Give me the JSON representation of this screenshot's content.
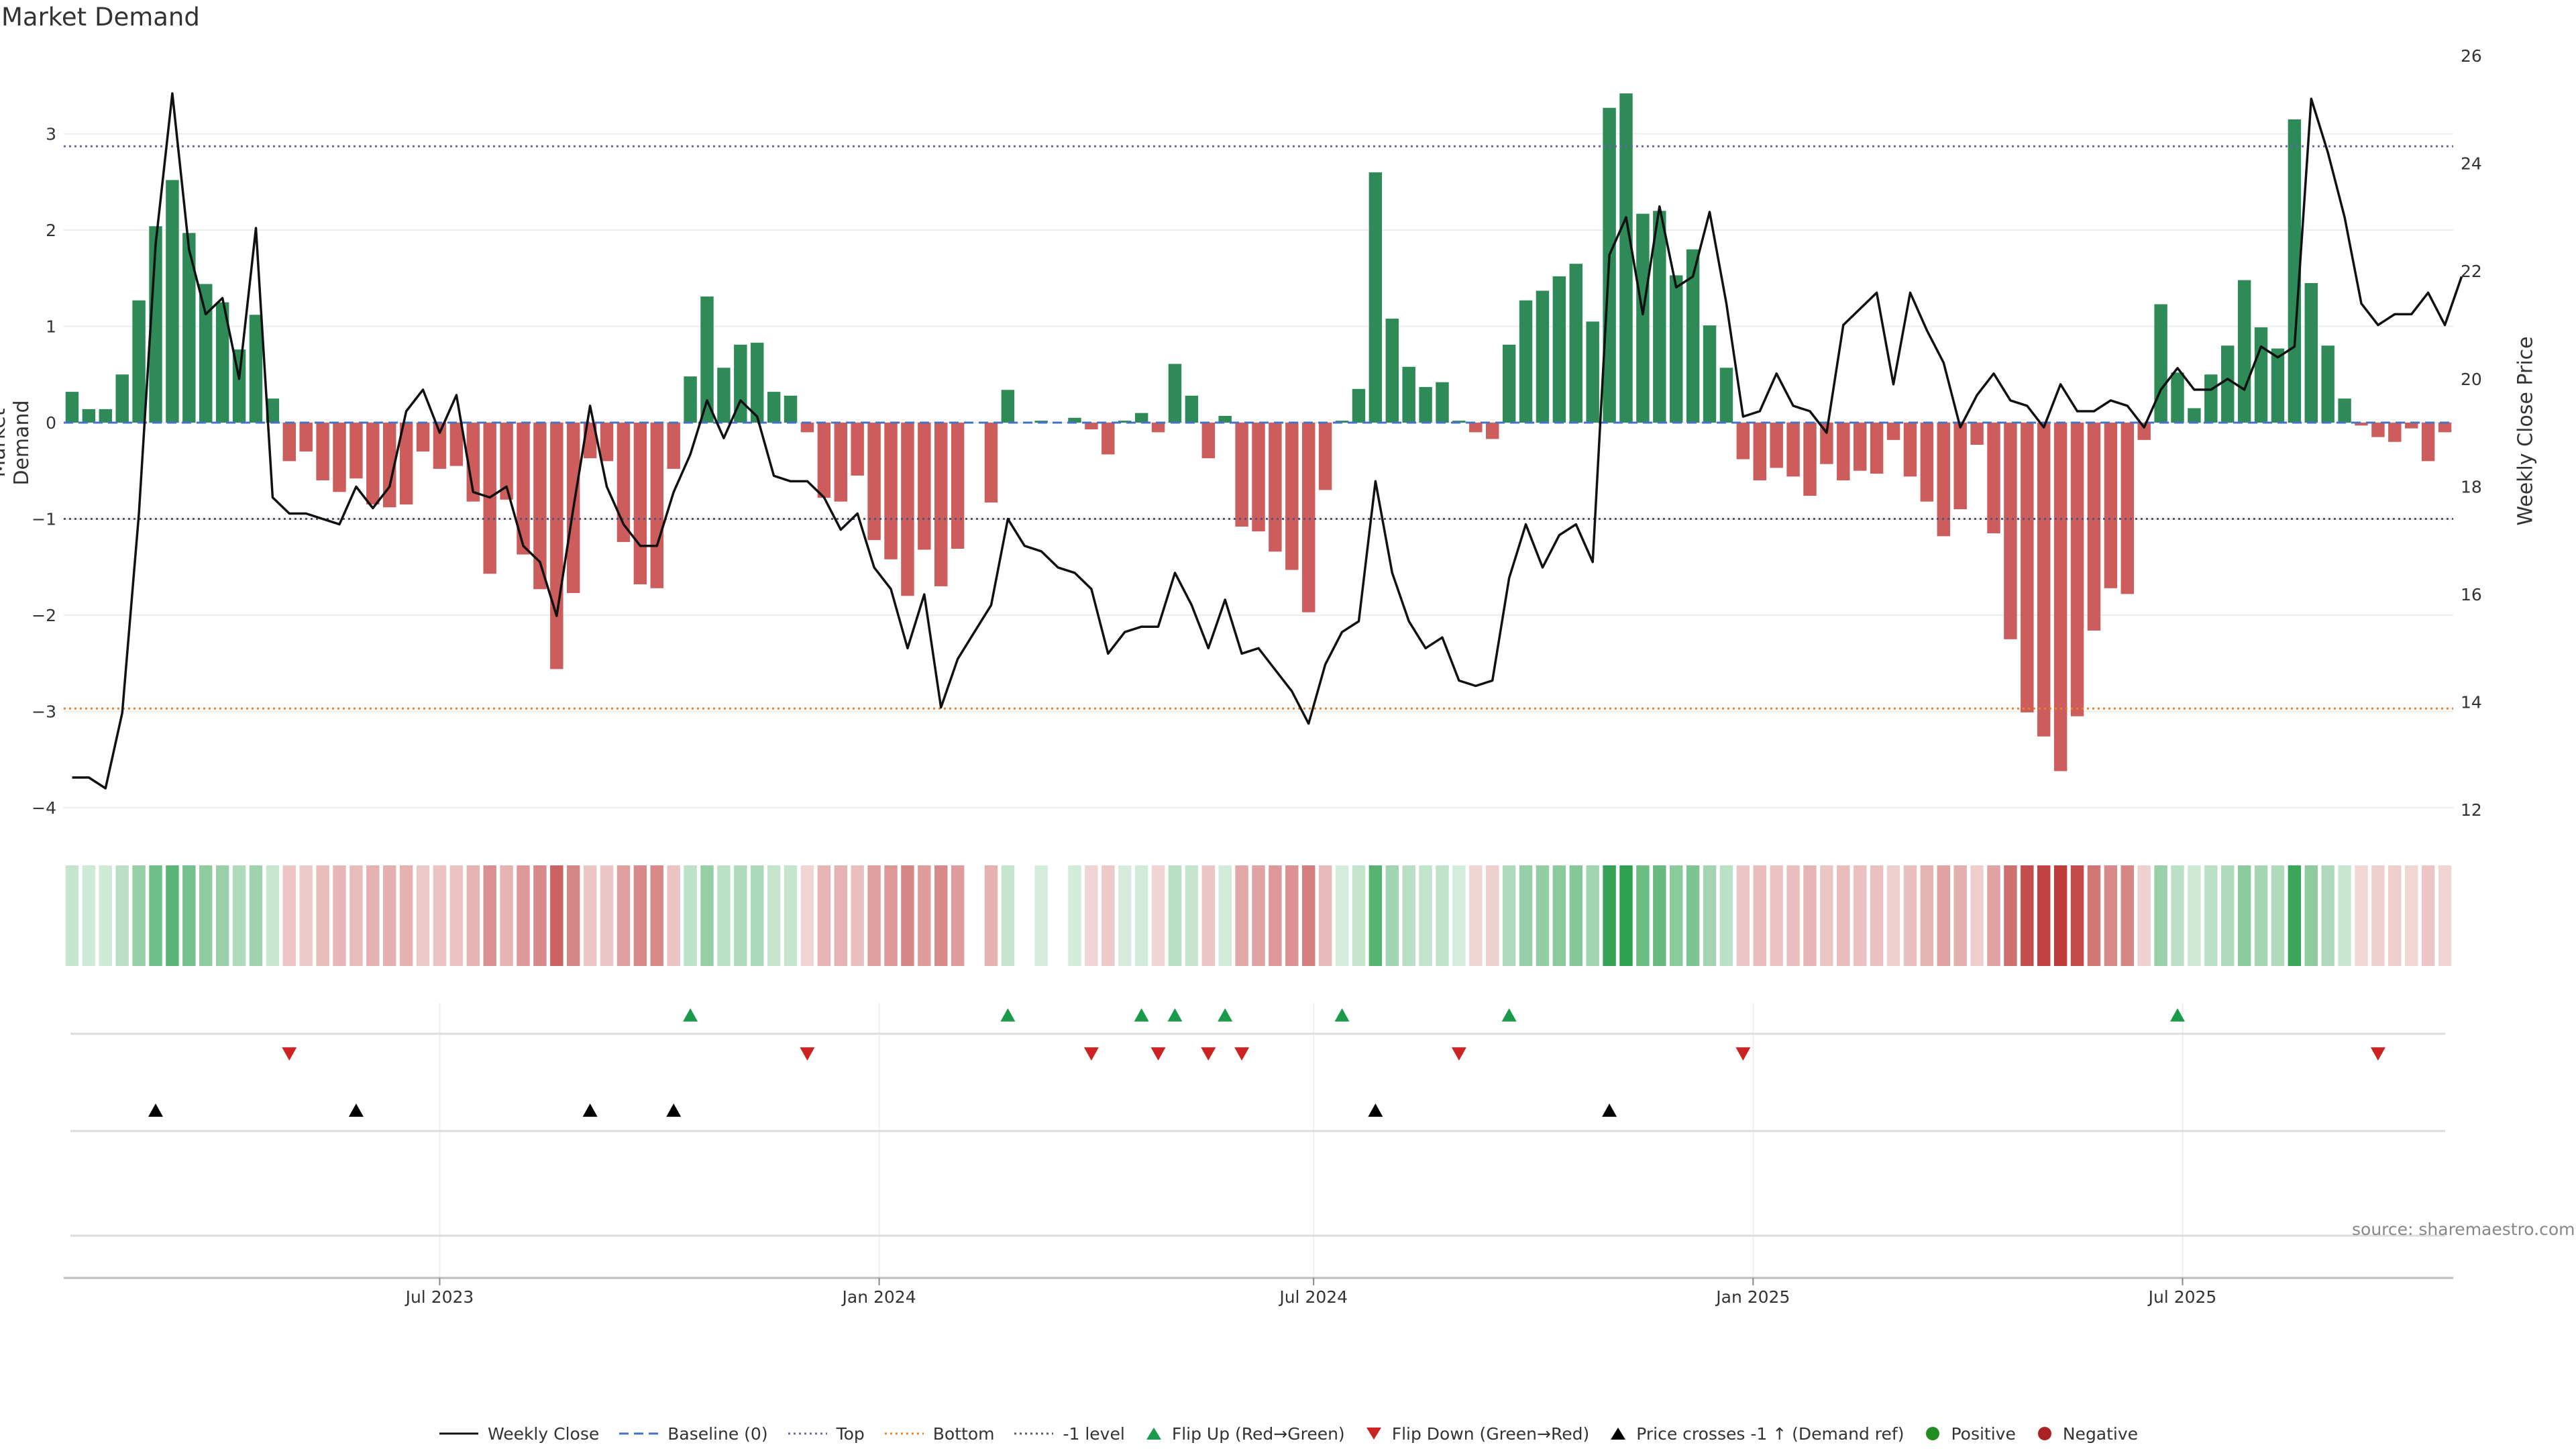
{
  "title": "Market Demand",
  "source": "source: sharemaestro.com",
  "colors": {
    "positive": "#2e8a57",
    "negative": "#cd5c5c",
    "line": "#111111",
    "baseline": "#4472c4",
    "top": "#6666aa",
    "bottom": "#e8852a",
    "minus_one": "#555577",
    "flip_up": "#1a9a4a",
    "flip_down": "#cc2222",
    "cross": "#000000",
    "pos_dot": "#228b22",
    "neg_dot": "#aa2222"
  },
  "legend": [
    {
      "key": "line",
      "label": "Weekly Close",
      "style": "solid",
      "color": "#111111"
    },
    {
      "key": "baseline",
      "label": "Baseline (0)",
      "style": "dashed",
      "color": "#4472c4"
    },
    {
      "key": "top",
      "label": "Top",
      "style": "dotted",
      "color": "#6666aa"
    },
    {
      "key": "bottom",
      "label": "Bottom",
      "style": "dotted",
      "color": "#e8852a"
    },
    {
      "key": "minus_one",
      "label": "-1 level",
      "style": "dotted",
      "color": "#555577"
    },
    {
      "key": "flip_up",
      "label": "Flip Up (Red→Green)",
      "style": "tri-up",
      "color": "#1a9a4a"
    },
    {
      "key": "flip_down",
      "label": "Flip Down (Green→Red)",
      "style": "tri-down",
      "color": "#cc2222"
    },
    {
      "key": "cross",
      "label": "Price crosses -1 ↑ (Demand ref)",
      "style": "tri-up",
      "color": "#000000"
    },
    {
      "key": "pos",
      "label": "Positive",
      "style": "dot",
      "color": "#228b22"
    },
    {
      "key": "neg",
      "label": "Negative",
      "style": "dot",
      "color": "#aa2222"
    }
  ],
  "chart_data": {
    "type": "bar",
    "title": "Market Demand",
    "ylabel": "Market Demand",
    "ylabel_right": "Weekly Close Price",
    "ylim": [
      -4.2,
      3.8
    ],
    "ylim_right": [
      11.7,
      26
    ],
    "yticks": [
      3,
      2,
      1,
      0,
      -1,
      -2,
      -3,
      -4
    ],
    "yticks_right": [
      26,
      24,
      22,
      20,
      18,
      16,
      14,
      12
    ],
    "xticks": [
      {
        "label": "Jul 2023",
        "week": 22
      },
      {
        "label": "Jan 2024",
        "week": 48.3
      },
      {
        "label": "Jul 2024",
        "week": 74.3
      },
      {
        "label": "Jan 2025",
        "week": 100.6
      },
      {
        "label": "Jul 2025",
        "week": 126.3
      }
    ],
    "reference_lines": {
      "top": 2.87,
      "bottom": -2.97,
      "minus_one": -1.0,
      "baseline": 0
    },
    "demand": [
      0.32,
      0.14,
      0.14,
      0.5,
      1.27,
      2.04,
      2.52,
      1.97,
      1.44,
      1.25,
      0.76,
      1.12,
      0.25,
      -0.4,
      -0.3,
      -0.6,
      -0.72,
      -0.58,
      -0.85,
      -0.88,
      -0.85,
      -0.3,
      -0.48,
      -0.45,
      -0.82,
      -1.57,
      -0.8,
      -1.37,
      -1.73,
      -2.56,
      -1.77,
      -0.37,
      -0.4,
      -1.24,
      -1.68,
      -1.72,
      -0.48,
      0.48,
      1.31,
      0.57,
      0.81,
      0.83,
      0.32,
      0.28,
      -0.1,
      -0.78,
      -0.82,
      -0.55,
      -1.22,
      -1.42,
      -1.8,
      -1.32,
      -1.7,
      -1.31,
      0,
      -0.83,
      0.34,
      0,
      0.02,
      0,
      0.05,
      -0.07,
      -0.33,
      0.02,
      0.1,
      -0.1,
      0.61,
      0.28,
      -0.37,
      0.07,
      -1.08,
      -1.13,
      -1.34,
      -1.53,
      -1.97,
      -0.7,
      0.02,
      0.35,
      2.6,
      1.08,
      0.58,
      0.37,
      0.42,
      0.02,
      -0.1,
      -0.17,
      0.81,
      1.27,
      1.37,
      1.52,
      1.65,
      1.05,
      3.27,
      3.42,
      2.17,
      2.2,
      1.53,
      1.8,
      1.01,
      0.57,
      -0.38,
      -0.6,
      -0.47,
      -0.56,
      -0.76,
      -0.43,
      -0.6,
      -0.5,
      -0.53,
      -0.18,
      -0.56,
      -0.82,
      -1.18,
      -0.9,
      -0.23,
      -1.15,
      -2.25,
      -3.01,
      -3.26,
      -3.62,
      -3.05,
      -2.16,
      -1.72,
      -1.78,
      -0.18,
      1.23,
      0.52,
      0.15,
      0.5,
      0.8,
      1.48,
      0.99,
      0.77,
      3.15,
      1.45,
      0.8,
      0.25,
      -0.03,
      -0.15,
      -0.2,
      -0.06,
      -0.4,
      -0.1
    ],
    "weekly_close": [
      12.6,
      12.6,
      12.4,
      13.8,
      17.5,
      22.5,
      25.3,
      22.4,
      21.2,
      21.5,
      20,
      22.8,
      17.8,
      17.5,
      17.5,
      17.4,
      17.3,
      18,
      17.6,
      18,
      19.4,
      19.8,
      19,
      19.7,
      17.9,
      17.8,
      18,
      16.9,
      16.6,
      15.6,
      17.6,
      19.5,
      18,
      17.3,
      16.9,
      16.9,
      17.9,
      18.6,
      19.6,
      18.9,
      19.6,
      19.3,
      18.2,
      18.1,
      18.1,
      17.8,
      17.2,
      17.5,
      16.5,
      16.1,
      15,
      16,
      13.9,
      14.8,
      15.3,
      15.8,
      17.4,
      16.9,
      16.8,
      16.5,
      16.4,
      16.1,
      14.9,
      15.3,
      15.4,
      15.4,
      16.4,
      15.8,
      15,
      15.9,
      14.9,
      15,
      14.6,
      14.2,
      13.6,
      14.7,
      15.3,
      15.5,
      18.1,
      16.4,
      15.5,
      15,
      15.2,
      14.4,
      14.3,
      14.4,
      16.3,
      17.3,
      16.5,
      17.1,
      17.3,
      16.6,
      22.3,
      23,
      21.2,
      23.2,
      21.7,
      21.9,
      23.1,
      21.4,
      19.3,
      19.4,
      20.1,
      19.5,
      19.4,
      19,
      21,
      21.3,
      21.6,
      19.9,
      21.6,
      20.9,
      20.3,
      19.1,
      19.7,
      20.1,
      19.6,
      19.5,
      19.1,
      19.9,
      19.4,
      19.4,
      19.6,
      19.5,
      19.1,
      19.8,
      20.2,
      19.8,
      19.8,
      20,
      19.8,
      20.6,
      20.4,
      20.6,
      25.2,
      24.2,
      23,
      21.4,
      21,
      21.2,
      21.2,
      21.6,
      21,
      21.9
    ],
    "flip_up_weeks": [
      37,
      56,
      64,
      66,
      69,
      76,
      86,
      126
    ],
    "flip_down_weeks": [
      13,
      44,
      61,
      65,
      68,
      70,
      83,
      100,
      138
    ],
    "price_cross_weeks": [
      5,
      17,
      31,
      36,
      78,
      92
    ]
  }
}
